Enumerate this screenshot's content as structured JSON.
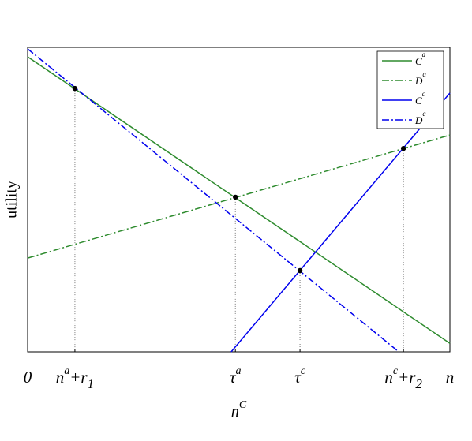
{
  "chart_data": {
    "type": "line",
    "xlabel": {
      "base": "n",
      "sup": "C"
    },
    "ylabel": "utility",
    "xlim": [
      0,
      1
    ],
    "ylim": [
      0,
      1
    ],
    "xticks": [
      0,
      {
        "value": 0.112,
        "label": {
          "base": "n",
          "sup": "a",
          "rest": "+r",
          "sub": "1"
        }
      },
      {
        "value": 0.492,
        "label": {
          "base": "τ",
          "sup": "a"
        }
      },
      {
        "value": 0.645,
        "label": {
          "base": "τ",
          "sup": "c"
        }
      },
      {
        "value": 0.89,
        "label": {
          "base": "n",
          "sup": "c",
          "rest": "+r",
          "sub": "2"
        }
      },
      {
        "value": 1,
        "label": "n"
      }
    ],
    "series": [
      {
        "name": {
          "base": "C",
          "sup": "a"
        },
        "color": "#2e8b2e",
        "style": "solid",
        "x": [
          0,
          1
        ],
        "values": [
          0.969,
          0.028
        ]
      },
      {
        "name": {
          "base": "D",
          "sup": "a"
        },
        "color": "#2e8b2e",
        "style": "dashdot",
        "x": [
          0,
          1
        ],
        "values": [
          0.308,
          0.712
        ]
      },
      {
        "name": {
          "base": "C",
          "sup": "c"
        },
        "color": "#0000ee",
        "style": "solid",
        "x": [
          0.482,
          1
        ],
        "values": [
          0,
          0.85
        ]
      },
      {
        "name": {
          "base": "D",
          "sup": "c"
        },
        "color": "#0000ee",
        "style": "dashdot",
        "x": [
          0,
          0.879
        ],
        "values": [
          0.995,
          0
        ]
      }
    ],
    "points": {
      "x": [
        0.112,
        0.492,
        0.645,
        0.89
      ],
      "values": [
        0.865,
        0.508,
        0.267,
        0.668
      ]
    },
    "legend": "upper right"
  }
}
